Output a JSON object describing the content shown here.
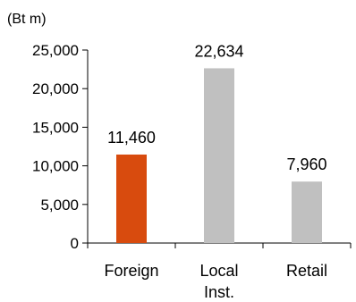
{
  "chart_data": {
    "type": "bar",
    "unit_label": "(Bt m)",
    "categories": [
      [
        "Foreign"
      ],
      [
        "Local",
        "Inst."
      ],
      [
        "Retail"
      ]
    ],
    "values": [
      11460,
      22634,
      7960
    ],
    "data_labels": [
      "11,460",
      "22,634",
      "7,960"
    ],
    "bar_colors": [
      "#d84b0e",
      "#c0c0c0",
      "#c0c0c0"
    ],
    "ylim": [
      0,
      25000
    ],
    "yticks": [
      0,
      5000,
      10000,
      15000,
      20000,
      25000
    ],
    "ytick_labels": [
      "0",
      "5,000",
      "10,000",
      "15,000",
      "20,000",
      "25,000"
    ],
    "grid": false,
    "legend": "none"
  }
}
